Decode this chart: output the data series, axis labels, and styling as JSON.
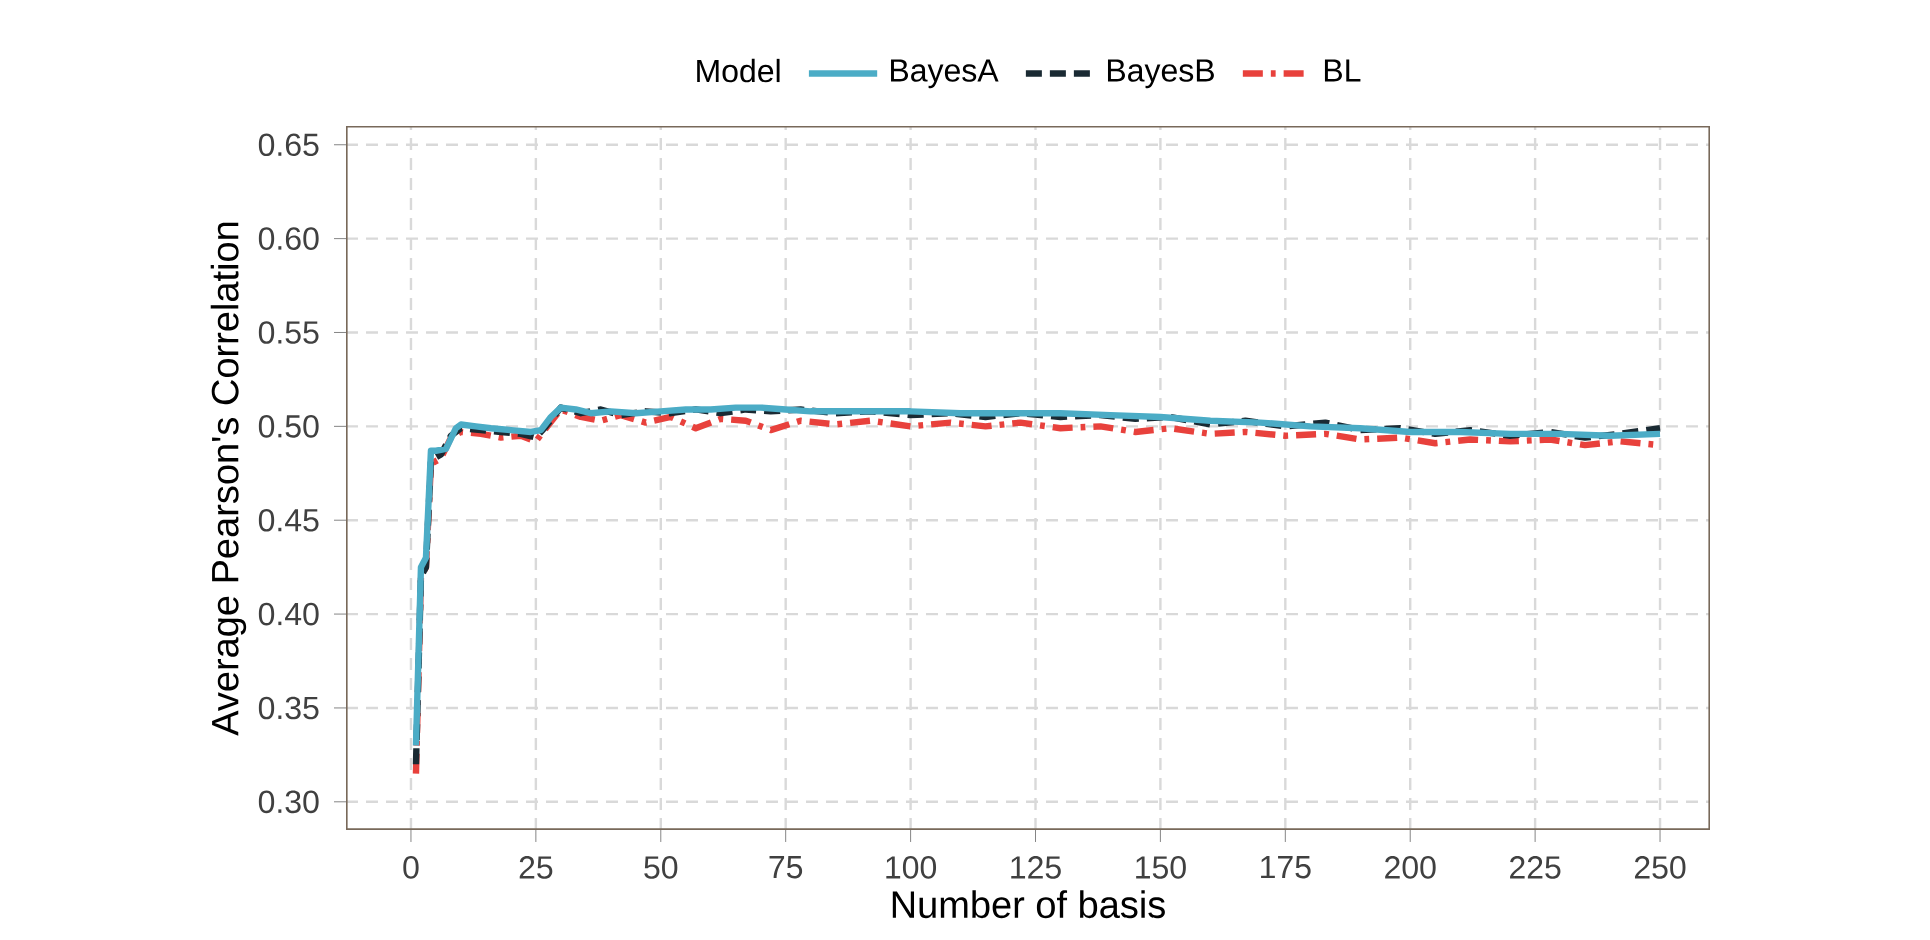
{
  "chart_data": {
    "type": "line",
    "xlabel": "Number of basis",
    "ylabel": "Average Pearson's Correlation",
    "legend_title": "Model",
    "legend": "top",
    "grid": true,
    "marker": "none",
    "xlim": [
      -13,
      260
    ],
    "xticks": [
      0,
      25,
      50,
      75,
      100,
      125,
      150,
      175,
      200,
      225,
      250
    ],
    "ylim": [
      0.285,
      0.66
    ],
    "yticks": [
      {
        "value": 0.3,
        "label": "0.30"
      },
      0.35,
      {
        "value": 0.4,
        "label": "0.40"
      },
      0.45,
      {
        "value": 0.5,
        "label": "0.50"
      },
      0.55,
      {
        "value": 0.6,
        "label": "0.60"
      },
      0.65
    ],
    "series": [
      {
        "name": "BayesA",
        "color": "#4bacc6",
        "line_style": "solid",
        "x": [
          1,
          2,
          3,
          4,
          5,
          7,
          9,
          10,
          13,
          16,
          20,
          24,
          26,
          28,
          30,
          33,
          36,
          40,
          45,
          50,
          55,
          60,
          65,
          70,
          75,
          80,
          90,
          100,
          110,
          120,
          130,
          140,
          150,
          160,
          170,
          180,
          190,
          200,
          210,
          220,
          230,
          240,
          250
        ],
        "values": [
          0.33,
          0.425,
          0.43,
          0.487,
          0.487,
          0.488,
          0.499,
          0.501,
          0.5,
          0.499,
          0.498,
          0.497,
          0.498,
          0.505,
          0.51,
          0.509,
          0.507,
          0.508,
          0.507,
          0.508,
          0.509,
          0.509,
          0.51,
          0.51,
          0.509,
          0.508,
          0.508,
          0.508,
          0.507,
          0.507,
          0.507,
          0.506,
          0.505,
          0.503,
          0.502,
          0.5,
          0.499,
          0.497,
          0.497,
          0.496,
          0.496,
          0.495,
          0.496
        ]
      },
      {
        "name": "BayesB",
        "color": "#1a2a33",
        "line_style": "dashed",
        "x": [
          1,
          2,
          3,
          4,
          6,
          8,
          10,
          14,
          18,
          22,
          25,
          27,
          30,
          34,
          38,
          42,
          47,
          52,
          57,
          62,
          67,
          72,
          78,
          85,
          92,
          100,
          108,
          115,
          122,
          130,
          138,
          145,
          152,
          160,
          167,
          175,
          183,
          190,
          198,
          205,
          212,
          220,
          228,
          235,
          242,
          250
        ],
        "values": [
          0.32,
          0.42,
          0.425,
          0.482,
          0.485,
          0.495,
          0.499,
          0.498,
          0.497,
          0.496,
          0.494,
          0.5,
          0.51,
          0.507,
          0.509,
          0.506,
          0.508,
          0.507,
          0.509,
          0.507,
          0.509,
          0.508,
          0.509,
          0.507,
          0.508,
          0.506,
          0.507,
          0.505,
          0.507,
          0.505,
          0.506,
          0.504,
          0.505,
          0.501,
          0.503,
          0.5,
          0.502,
          0.498,
          0.499,
          0.496,
          0.498,
          0.495,
          0.497,
          0.494,
          0.496,
          0.499
        ]
      },
      {
        "name": "BL",
        "color": "#e8413c",
        "line_style": "dashdot",
        "x": [
          1,
          2,
          3,
          4,
          6,
          8,
          10,
          14,
          18,
          22,
          25,
          27,
          30,
          34,
          38,
          42,
          47,
          52,
          57,
          62,
          67,
          72,
          78,
          85,
          92,
          100,
          108,
          115,
          122,
          130,
          138,
          145,
          152,
          160,
          167,
          175,
          183,
          190,
          198,
          205,
          212,
          220,
          228,
          235,
          242,
          250
        ],
        "values": [
          0.315,
          0.42,
          0.425,
          0.48,
          0.483,
          0.494,
          0.497,
          0.496,
          0.494,
          0.495,
          0.492,
          0.499,
          0.509,
          0.505,
          0.503,
          0.506,
          0.502,
          0.505,
          0.499,
          0.504,
          0.503,
          0.498,
          0.503,
          0.501,
          0.503,
          0.5,
          0.502,
          0.5,
          0.502,
          0.499,
          0.5,
          0.497,
          0.499,
          0.496,
          0.497,
          0.495,
          0.496,
          0.493,
          0.494,
          0.491,
          0.493,
          0.492,
          0.493,
          0.49,
          0.492,
          0.49
        ]
      }
    ]
  }
}
